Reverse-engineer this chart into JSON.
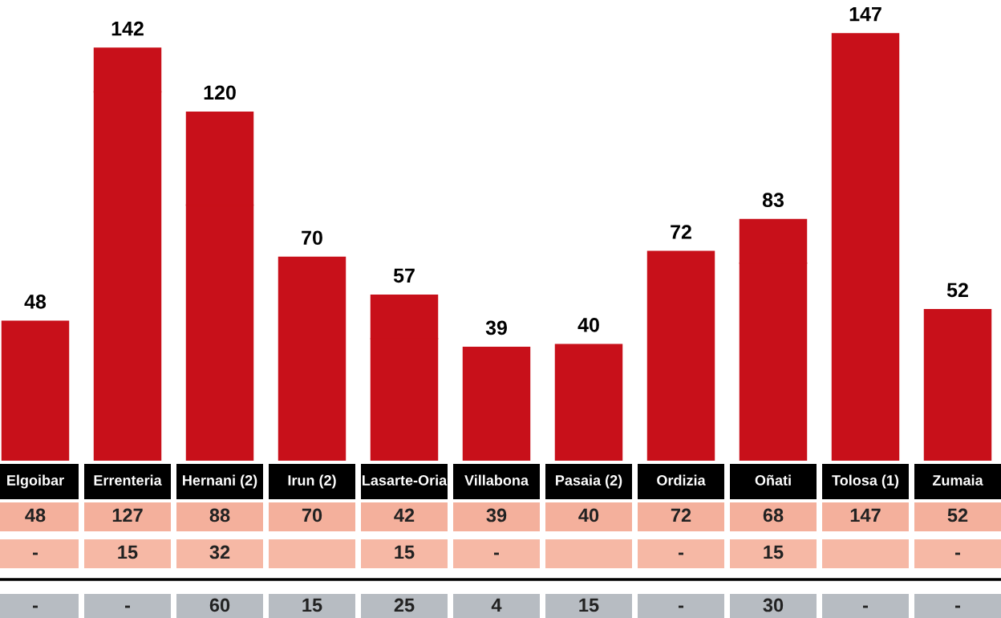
{
  "chart_data": {
    "type": "bar",
    "stacked": true,
    "categories": [
      "Elgoibar",
      "Errenteria",
      "Hernani (2)",
      "Irun (2)",
      "Lasarte-Oria",
      "Villabona",
      "Pasaia (2)",
      "Ordizia",
      "Oñati",
      "Tolosa (1)",
      "Zumaia"
    ],
    "series": [
      {
        "color": "#c8101a",
        "values": [
          48,
          127,
          88,
          70,
          42,
          39,
          40,
          72,
          68,
          147,
          52
        ],
        "value_labels": [
          "48",
          "127",
          "88",
          "70",
          "42",
          "39",
          "40",
          "72",
          "68",
          "147",
          "52"
        ]
      },
      {
        "color": "#c8101a",
        "values": [
          null,
          15,
          32,
          null,
          15,
          null,
          null,
          null,
          15,
          null,
          null
        ],
        "value_labels": [
          "-",
          "15",
          "32",
          null,
          "15",
          "-",
          null,
          "-",
          "15",
          null,
          "-"
        ]
      }
    ],
    "totals": [
      "48",
      "142",
      "120",
      "70",
      "57",
      "39",
      "40",
      "72",
      "83",
      "147",
      "52"
    ],
    "annotations": [
      "-",
      "-",
      "60",
      "15",
      "25",
      "4",
      "15",
      "-",
      "30",
      "-",
      "-"
    ]
  }
}
